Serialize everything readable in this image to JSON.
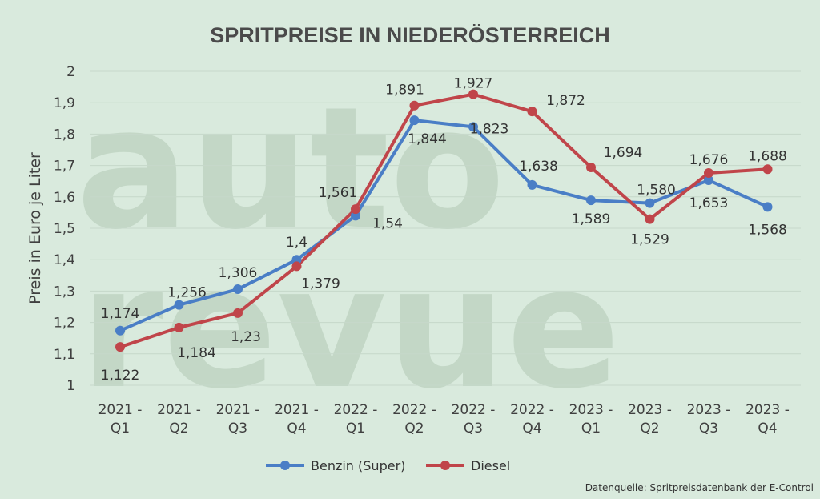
{
  "chart_data": {
    "type": "line",
    "title": "SPRITPREISE IN NIEDERÖSTERREICH",
    "xlabel": "",
    "ylabel": "Preis in Euro je Liter",
    "ylim": [
      1,
      2
    ],
    "yticks": [
      "1",
      "1,1",
      "1,2",
      "1,3",
      "1,4",
      "1,5",
      "1,6",
      "1,7",
      "1,8",
      "1,9",
      "2"
    ],
    "categories": [
      [
        "2021 -",
        "Q1"
      ],
      [
        "2021 -",
        "Q2"
      ],
      [
        "2021 -",
        "Q3"
      ],
      [
        "2021 -",
        "Q4"
      ],
      [
        "2022 -",
        "Q1"
      ],
      [
        "2022 -",
        "Q2"
      ],
      [
        "2022 -",
        "Q3"
      ],
      [
        "2022 -",
        "Q4"
      ],
      [
        "2023 -",
        "Q1"
      ],
      [
        "2023 -",
        "Q2"
      ],
      [
        "2023 -",
        "Q3"
      ],
      [
        "2023 -",
        "Q4"
      ]
    ],
    "series": [
      {
        "name": "Benzin (Super)",
        "color": "#4a7ec6",
        "values": [
          1.174,
          1.256,
          1.306,
          1.4,
          1.54,
          1.844,
          1.823,
          1.638,
          1.589,
          1.58,
          1.653,
          1.568
        ],
        "labels": [
          "1,174",
          "1,256",
          "1,306",
          "1,4",
          "1,54",
          "1,844",
          "1,823",
          "1,638",
          "1,589",
          "1,580",
          "1,653",
          "1,568"
        ]
      },
      {
        "name": "Diesel",
        "color": "#c0454a",
        "values": [
          1.122,
          1.184,
          1.23,
          1.379,
          1.561,
          1.891,
          1.927,
          1.872,
          1.694,
          1.529,
          1.676,
          1.688
        ],
        "labels": [
          "1,122",
          "1,184",
          "1,23",
          "1,379",
          "1,561",
          "1,891",
          "1,927",
          "1,872",
          "1,694",
          "1,529",
          "1,676",
          "1,688"
        ]
      }
    ],
    "legend_position": "bottom",
    "grid": true
  },
  "watermark": [
    "auto",
    "revue"
  ],
  "source_note": "Datenquelle: Spritpreisdatenbank der E-Control"
}
